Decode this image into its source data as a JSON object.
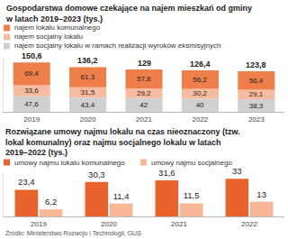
{
  "chart_data": [
    {
      "type": "bar",
      "title": "Gospodarstwa domowe czekające na najem mieszkań od gminy w latach 2019–2023 (tys.)",
      "categories": [
        "2019",
        "2020",
        "2021",
        "2022",
        "2023"
      ],
      "stacked": true,
      "data_labels": true,
      "legend": "top left",
      "tick_labels": "x",
      "ylim": [
        0,
        165
      ],
      "series": [
        {
          "name": "najem lokalu komunalnego",
          "color": "#ee7f4b",
          "values": [
            69.4,
            61.3,
            57.8,
            56.2,
            56.4
          ],
          "value_labels": [
            "69,4",
            "61,3",
            "57,8",
            "56,2",
            "56,4"
          ]
        },
        {
          "name": "najem socjalny lokalu",
          "color": "#f7bc9f",
          "values": [
            33.6,
            31.5,
            29.2,
            30.2,
            29.1
          ],
          "value_labels": [
            "33,6",
            "31,5",
            "29,2",
            "30,2",
            "29,1"
          ]
        },
        {
          "name": "najem socjalny lokalu w ramach realizacji wyroków eksmisyjnych",
          "color": "#d0d0d0",
          "values": [
            47.6,
            43.4,
            42,
            40,
            38.3
          ],
          "value_labels": [
            "47,6",
            "43,4",
            "42",
            "40",
            "38,3"
          ]
        }
      ],
      "totals": [
        150.6,
        136.2,
        129,
        126.4,
        123.8
      ],
      "total_labels": [
        "150,6",
        "136,2",
        "129",
        "126,4",
        "123,8"
      ]
    },
    {
      "type": "bar",
      "title": "Rozwiązane umowy najmu lokalu na czas nieoznaczony (tzw. lokal komunalny) oraz najmu socjalnego lokalu w latach 2019–2022 (tys.)",
      "categories": [
        "2019",
        "2020",
        "2021",
        "2022"
      ],
      "stacked": false,
      "data_labels": true,
      "legend": "top left",
      "tick_labels": "x",
      "ylim": [
        0,
        38
      ],
      "series": [
        {
          "name": "umowy najmu lokalu komunalnego",
          "color": "#e8632e",
          "values": [
            23.4,
            30.3,
            31.6,
            33
          ],
          "value_labels": [
            "23,4",
            "30,3",
            "31,6",
            "33"
          ]
        },
        {
          "name": "umowy najmu socjalnego",
          "color": "#f8b796",
          "values": [
            6.2,
            11.4,
            11.5,
            13
          ],
          "value_labels": [
            "6,2",
            "11,4",
            "11,5",
            "13"
          ]
        }
      ]
    }
  ],
  "source": "Źródło: Ministerstwo Rozwoju i Technologii, GUS"
}
